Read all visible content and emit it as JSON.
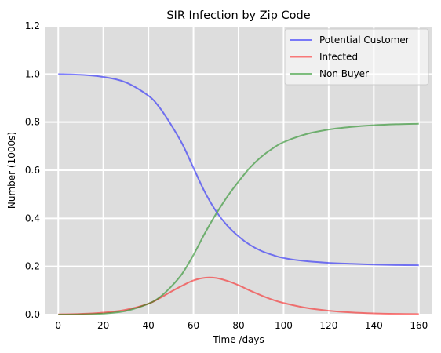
{
  "chart_data": {
    "type": "line",
    "title": "SIR Infection by Zip Code",
    "xlabel": "Time /days",
    "ylabel": "Number (1000s)",
    "xlim": [
      -6,
      166
    ],
    "ylim": [
      0,
      1.2
    ],
    "xticks": [
      0,
      20,
      40,
      60,
      80,
      100,
      120,
      140,
      160
    ],
    "yticks": [
      0.0,
      0.2,
      0.4,
      0.6,
      0.8,
      1.0,
      1.2
    ],
    "ytick_labels": [
      "0.0",
      "0.2",
      "0.4",
      "0.6",
      "0.8",
      "1.0",
      "1.2"
    ],
    "grid": true,
    "legend_position": "top-right",
    "background": "#dddddd",
    "x": [
      0,
      10,
      20,
      30,
      40,
      45,
      50,
      55,
      60,
      65,
      70,
      75,
      80,
      85,
      90,
      95,
      100,
      110,
      120,
      130,
      140,
      150,
      160
    ],
    "series": [
      {
        "name": "Potential Customer",
        "color": "#0000ff",
        "values": [
          1.0,
          0.997,
          0.988,
          0.965,
          0.91,
          0.86,
          0.79,
          0.71,
          0.61,
          0.51,
          0.43,
          0.37,
          0.325,
          0.29,
          0.265,
          0.248,
          0.235,
          0.222,
          0.215,
          0.211,
          0.208,
          0.206,
          0.205
        ]
      },
      {
        "name": "Infected",
        "color": "#ff0000",
        "values": [
          0.001,
          0.003,
          0.008,
          0.02,
          0.045,
          0.068,
          0.095,
          0.12,
          0.142,
          0.153,
          0.152,
          0.14,
          0.122,
          0.1,
          0.08,
          0.062,
          0.048,
          0.028,
          0.016,
          0.009,
          0.005,
          0.003,
          0.002
        ]
      },
      {
        "name": "Non Buyer",
        "color": "#008000",
        "values": [
          0.0,
          0.001,
          0.004,
          0.015,
          0.045,
          0.072,
          0.115,
          0.17,
          0.248,
          0.337,
          0.418,
          0.49,
          0.553,
          0.61,
          0.655,
          0.69,
          0.717,
          0.75,
          0.769,
          0.78,
          0.787,
          0.791,
          0.793
        ]
      }
    ]
  }
}
